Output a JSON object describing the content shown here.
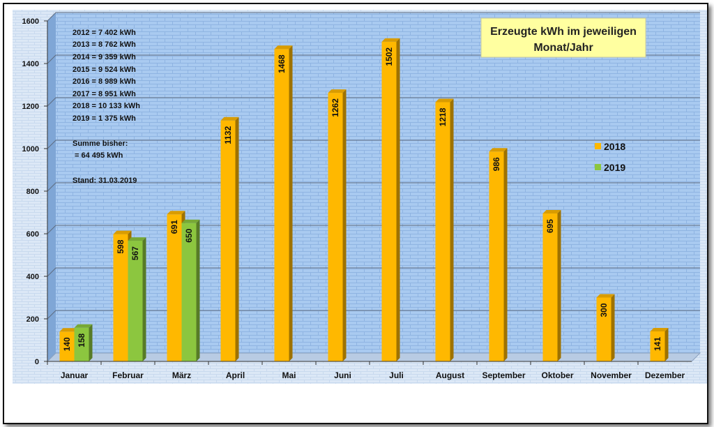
{
  "chart_data": {
    "type": "bar",
    "title_lines": [
      "Erzeugte kWh im jeweiligen",
      "Monat/Jahr"
    ],
    "categories": [
      "Januar",
      "Februar",
      "März",
      "April",
      "Mai",
      "Juni",
      "Juli",
      "August",
      "September",
      "Oktober",
      "November",
      "Dezember"
    ],
    "series": [
      {
        "name": "2018",
        "color": "#FFB800",
        "values": [
          140,
          598,
          691,
          1132,
          1468,
          1262,
          1502,
          1218,
          986,
          695,
          300,
          141
        ]
      },
      {
        "name": "2019",
        "color": "#8CC63F",
        "values": [
          158,
          567,
          650,
          null,
          null,
          null,
          null,
          null,
          null,
          null,
          null,
          null
        ]
      }
    ],
    "ylim": [
      0,
      1600
    ],
    "yticks": [
      "0",
      "200",
      "400",
      "600",
      "800",
      "1000",
      "1200",
      "1400",
      "1600"
    ],
    "grid": true,
    "legend_position": "right",
    "info_lines": [
      "2012 =   7 402 kWh",
      "2013 =   8 762 kWh",
      "2014 =   9 359 kWh",
      "2015 =   9 524 kWh",
      "2016 =   8 989 kWh",
      "2017 =   8 951 kWh",
      "2018 = 10 133 kWh",
      "2019 =   1 375 kWh"
    ],
    "sum_label": "Summe bisher:",
    "sum_value": "= 64 495 kWh",
    "stand": "Stand: 31.03.2019"
  },
  "colors": {
    "plot_bg": "#A9CAF0",
    "outer_bg": "#DCE8F6",
    "title_bg": "#FFFFA0",
    "bar_2018": "#FFB800",
    "bar_2019": "#8CC63F"
  }
}
